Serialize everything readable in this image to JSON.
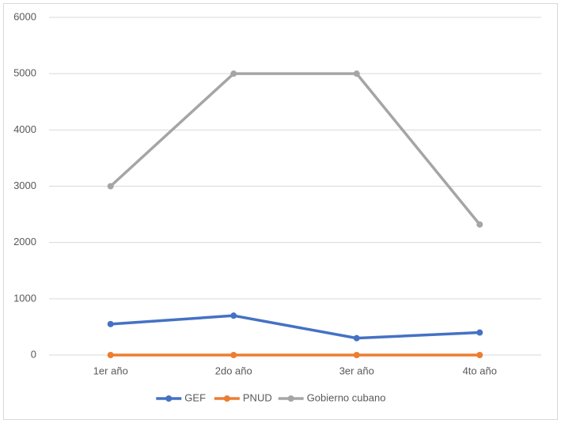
{
  "chart_data": {
    "type": "line",
    "categories": [
      "1er año",
      "2do año",
      "3er año",
      "4to año"
    ],
    "series": [
      {
        "name": "GEF",
        "color": "#4472c4",
        "values": [
          550,
          700,
          300,
          400
        ]
      },
      {
        "name": "PNUD",
        "color": "#ed7d31",
        "values": [
          0,
          0,
          0,
          0
        ]
      },
      {
        "name": "Gobierno cubano",
        "color": "#a5a5a5",
        "values": [
          3000,
          5000,
          5000,
          2320
        ]
      }
    ],
    "ylim": [
      0,
      6000
    ],
    "yticks": [
      0,
      1000,
      2000,
      3000,
      4000,
      5000,
      6000
    ],
    "grid": true,
    "legend": "bottom"
  }
}
